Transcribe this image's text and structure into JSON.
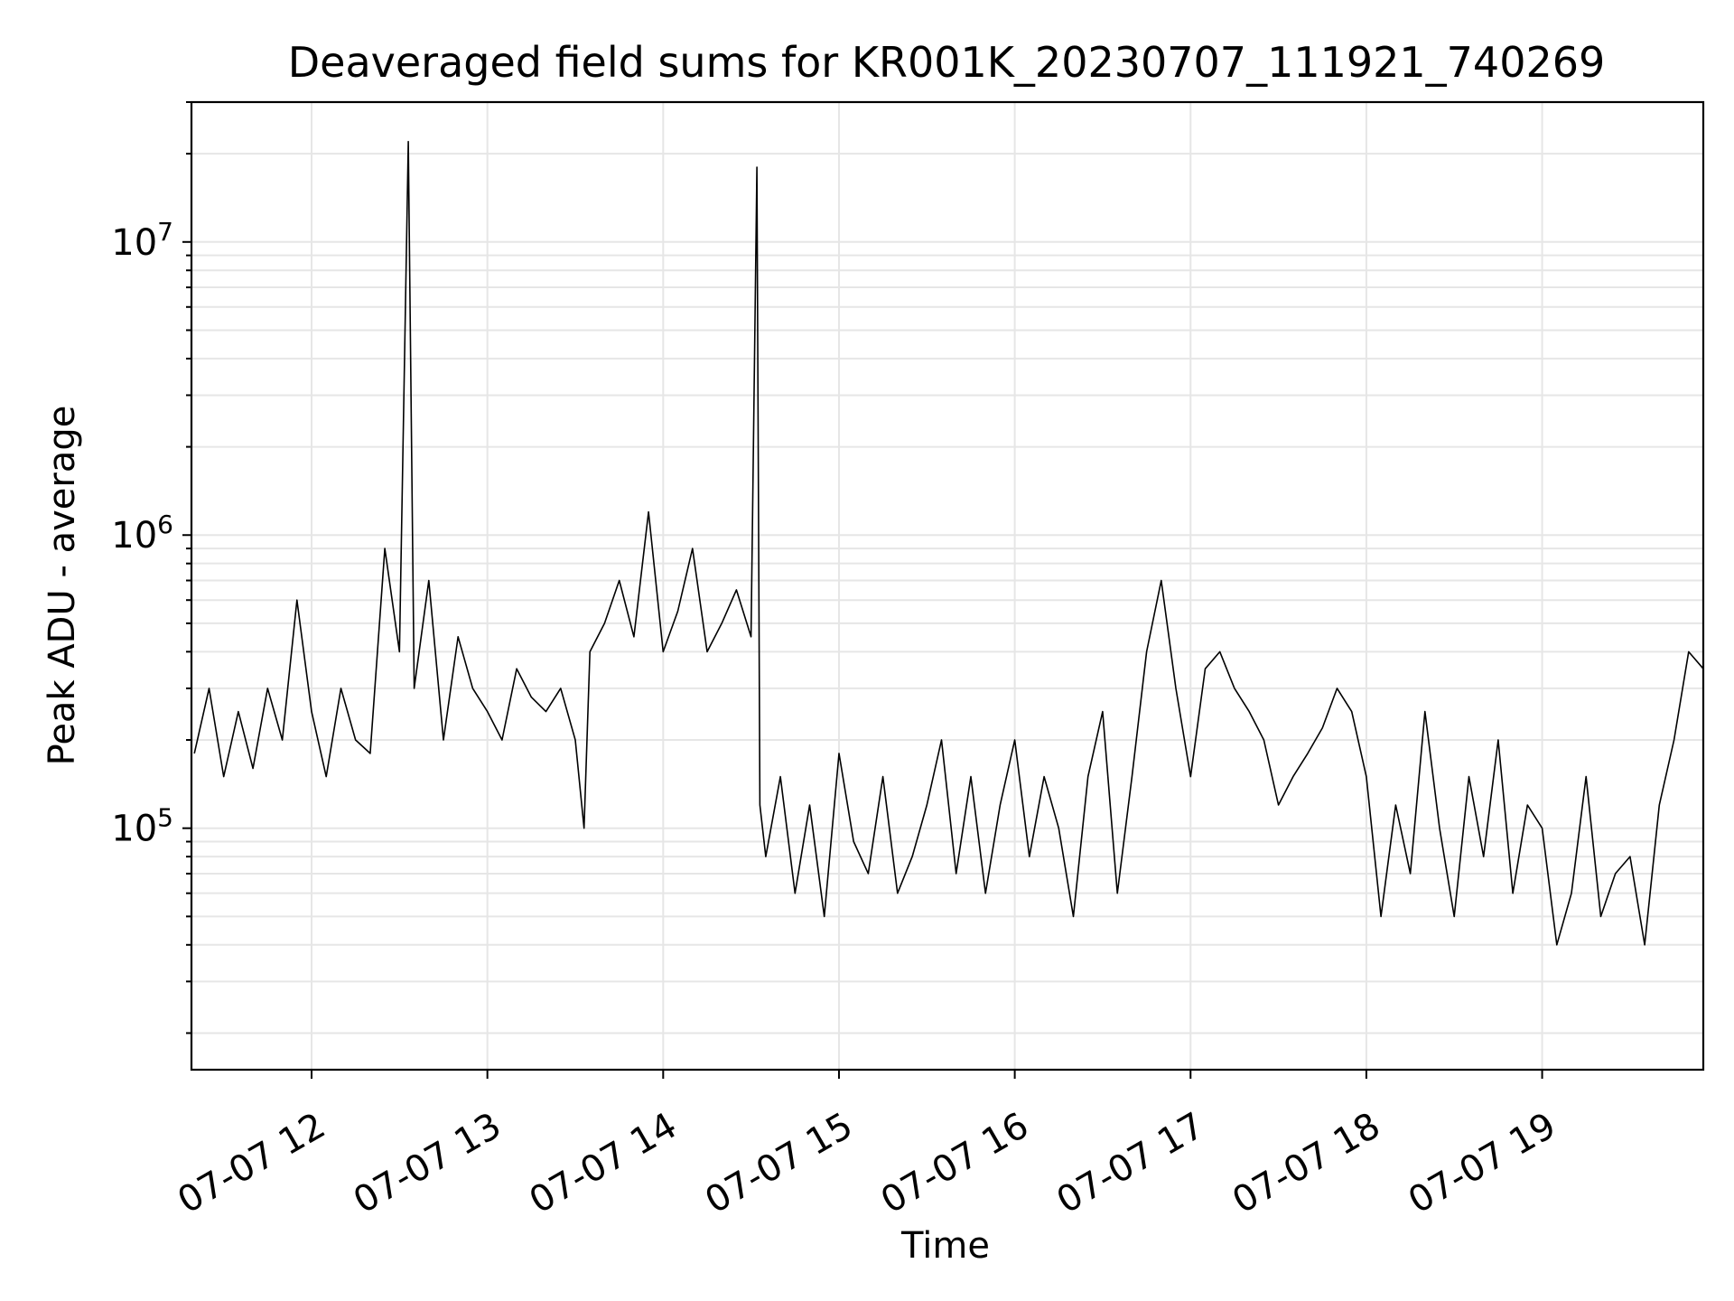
{
  "chart_data": {
    "type": "line",
    "title": "Deaveraged field sums for KR001K_20230707_111921_740269",
    "xlabel": "Time",
    "ylabel": "Peak ADU - average",
    "y_scale": "log",
    "ylim": [
      15000,
      30000000
    ],
    "x_range": [
      "2023-07-07 11:19",
      "2023-07-07 19:55"
    ],
    "x_tick_labels": [
      "07-07 12",
      "07-07 13",
      "07-07 14",
      "07-07 15",
      "07-07 16",
      "07-07 17",
      "07-07 18",
      "07-07 19"
    ],
    "x_tick_times": [
      "2023-07-07 12:00",
      "2023-07-07 13:00",
      "2023-07-07 14:00",
      "2023-07-07 15:00",
      "2023-07-07 16:00",
      "2023-07-07 17:00",
      "2023-07-07 18:00",
      "2023-07-07 19:00"
    ],
    "y_tick_exponents": [
      "7",
      "6",
      "5"
    ],
    "grid": true,
    "legend": "none",
    "series": [
      {
        "color": "#000000",
        "x": [
          "2023-07-07 11:20",
          "2023-07-07 11:25",
          "2023-07-07 11:30",
          "2023-07-07 11:35",
          "2023-07-07 11:40",
          "2023-07-07 11:45",
          "2023-07-07 11:50",
          "2023-07-07 11:55",
          "2023-07-07 12:00",
          "2023-07-07 12:05",
          "2023-07-07 12:10",
          "2023-07-07 12:15",
          "2023-07-07 12:20",
          "2023-07-07 12:25",
          "2023-07-07 12:30",
          "2023-07-07 12:33",
          "2023-07-07 12:35",
          "2023-07-07 12:40",
          "2023-07-07 12:45",
          "2023-07-07 12:50",
          "2023-07-07 12:55",
          "2023-07-07 13:00",
          "2023-07-07 13:05",
          "2023-07-07 13:10",
          "2023-07-07 13:15",
          "2023-07-07 13:20",
          "2023-07-07 13:25",
          "2023-07-07 13:30",
          "2023-07-07 13:33",
          "2023-07-07 13:35",
          "2023-07-07 13:40",
          "2023-07-07 13:45",
          "2023-07-07 13:50",
          "2023-07-07 13:55",
          "2023-07-07 14:00",
          "2023-07-07 14:05",
          "2023-07-07 14:10",
          "2023-07-07 14:15",
          "2023-07-07 14:20",
          "2023-07-07 14:25",
          "2023-07-07 14:30",
          "2023-07-07 14:32",
          "2023-07-07 14:33",
          "2023-07-07 14:35",
          "2023-07-07 14:40",
          "2023-07-07 14:45",
          "2023-07-07 14:50",
          "2023-07-07 14:55",
          "2023-07-07 15:00",
          "2023-07-07 15:05",
          "2023-07-07 15:10",
          "2023-07-07 15:15",
          "2023-07-07 15:20",
          "2023-07-07 15:25",
          "2023-07-07 15:30",
          "2023-07-07 15:35",
          "2023-07-07 15:40",
          "2023-07-07 15:45",
          "2023-07-07 15:50",
          "2023-07-07 15:55",
          "2023-07-07 16:00",
          "2023-07-07 16:05",
          "2023-07-07 16:10",
          "2023-07-07 16:15",
          "2023-07-07 16:20",
          "2023-07-07 16:25",
          "2023-07-07 16:30",
          "2023-07-07 16:35",
          "2023-07-07 16:40",
          "2023-07-07 16:45",
          "2023-07-07 16:50",
          "2023-07-07 16:55",
          "2023-07-07 17:00",
          "2023-07-07 17:05",
          "2023-07-07 17:10",
          "2023-07-07 17:15",
          "2023-07-07 17:20",
          "2023-07-07 17:25",
          "2023-07-07 17:30",
          "2023-07-07 17:35",
          "2023-07-07 17:40",
          "2023-07-07 17:45",
          "2023-07-07 17:50",
          "2023-07-07 17:55",
          "2023-07-07 18:00",
          "2023-07-07 18:05",
          "2023-07-07 18:10",
          "2023-07-07 18:15",
          "2023-07-07 18:20",
          "2023-07-07 18:25",
          "2023-07-07 18:30",
          "2023-07-07 18:35",
          "2023-07-07 18:40",
          "2023-07-07 18:45",
          "2023-07-07 18:50",
          "2023-07-07 18:55",
          "2023-07-07 19:00",
          "2023-07-07 19:05",
          "2023-07-07 19:10",
          "2023-07-07 19:15",
          "2023-07-07 19:20",
          "2023-07-07 19:25",
          "2023-07-07 19:30",
          "2023-07-07 19:35",
          "2023-07-07 19:40",
          "2023-07-07 19:45",
          "2023-07-07 19:50",
          "2023-07-07 19:55"
        ],
        "y": [
          180000,
          300000,
          150000,
          250000,
          160000,
          300000,
          200000,
          600000,
          250000,
          150000,
          300000,
          200000,
          180000,
          900000,
          400000,
          22000000,
          300000,
          700000,
          200000,
          450000,
          300000,
          250000,
          200000,
          350000,
          280000,
          250000,
          300000,
          200000,
          100000,
          400000,
          500000,
          700000,
          450000,
          1200000,
          400000,
          550000,
          900000,
          400000,
          500000,
          650000,
          450000,
          18000000,
          120000,
          80000,
          150000,
          60000,
          120000,
          50000,
          180000,
          90000,
          70000,
          150000,
          60000,
          80000,
          120000,
          200000,
          70000,
          150000,
          60000,
          120000,
          200000,
          80000,
          150000,
          100000,
          50000,
          150000,
          250000,
          60000,
          150000,
          400000,
          700000,
          300000,
          150000,
          350000,
          400000,
          300000,
          250000,
          200000,
          120000,
          150000,
          180000,
          220000,
          300000,
          250000,
          150000,
          50000,
          120000,
          70000,
          250000,
          100000,
          50000,
          150000,
          80000,
          200000,
          60000,
          120000,
          100000,
          40000,
          60000,
          150000,
          50000,
          70000,
          80000,
          40000,
          120000,
          200000,
          400000,
          350000
        ]
      }
    ]
  }
}
